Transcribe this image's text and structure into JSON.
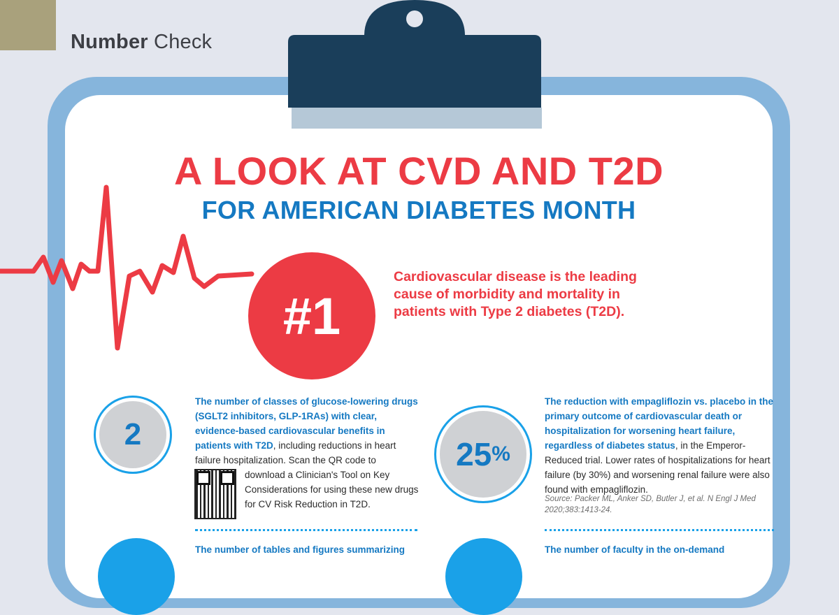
{
  "header": {
    "label_bold": "Number",
    "label_regular": "Check"
  },
  "title": {
    "main": "A LOOK AT CVD AND T2D",
    "sub": "FOR AMERICAN DIABETES MONTH"
  },
  "highlight": {
    "rank": "#1",
    "text": "Cardiovascular disease is the leading cause of morbidity and mortality in patients with Type 2 diabetes (T2D)."
  },
  "stats": [
    {
      "value": "2",
      "highlight": "The number of classes of glucose-lowering drugs (SGLT2 inhibitors, GLP-1RAs) with clear, evidence-based cardiovascular benefits in patients with T2D",
      "body": ", including reductions in heart failure hospitalization. Scan the QR code to",
      "qr_text": "download a Clinician's Tool on Key Considerations for using these new drugs for CV Risk Reduction in T2D."
    },
    {
      "value_number": "25",
      "value_unit": "%",
      "highlight": "The reduction with empagliflozin vs. placebo in the primary outcome of cardiovascular death or hospitalization for worsening heart failure, regardless of diabetes status",
      "body": ", in the Emperor-Reduced trial. Lower rates of hospitalizations for heart failure (by 30%) and worsening renal failure were also found with empagliflozin.",
      "source": "Source: Packer ML, Anker SD, Butler J, et al. N Engl J Med 2020;383:1413-24."
    }
  ],
  "teasers": [
    "The number of tables and figures summarizing",
    "The number of faculty in the on-demand"
  ],
  "colors": {
    "red": "#ec3b44",
    "blue": "#1579c2",
    "navy": "#1a3e5a",
    "board": "#86b5dc"
  },
  "icons": [
    "clipboard-clip-icon",
    "heartbeat-line-icon",
    "qr-code-icon"
  ]
}
